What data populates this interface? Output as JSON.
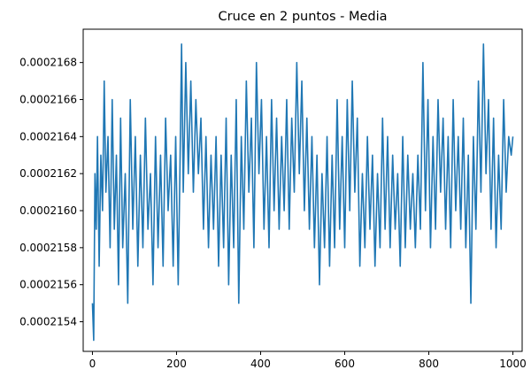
{
  "chart_data": {
    "type": "line",
    "title": "Cruce en 2 puntos - Media",
    "xlabel": "",
    "ylabel": "",
    "xlim": [
      -22,
      1022
    ],
    "ylim": [
      0.00021524,
      0.00021698
    ],
    "grid": false,
    "x_ticks": [
      {
        "value": 0,
        "label": "0"
      },
      {
        "value": 200,
        "label": "200"
      },
      {
        "value": 400,
        "label": "400"
      },
      {
        "value": 600,
        "label": "600"
      },
      {
        "value": 800,
        "label": "800"
      },
      {
        "value": 1000,
        "label": "1000"
      }
    ],
    "y_ticks": [
      {
        "value": 0.0002154,
        "label": "0.0002154"
      },
      {
        "value": 0.0002156,
        "label": "0.0002156"
      },
      {
        "value": 0.0002158,
        "label": "0.0002158"
      },
      {
        "value": 0.000216,
        "label": "0.0002160"
      },
      {
        "value": 0.0002162,
        "label": "0.0002162"
      },
      {
        "value": 0.0002164,
        "label": "0.0002164"
      },
      {
        "value": 0.0002166,
        "label": "0.0002166"
      },
      {
        "value": 0.0002168,
        "label": "0.0002168"
      }
    ],
    "series": [
      {
        "color": "#1f77b4",
        "x": [
          0,
          3,
          6,
          9,
          12,
          16,
          20,
          24,
          28,
          32,
          37,
          42,
          47,
          52,
          57,
          62,
          67,
          72,
          78,
          84,
          90,
          96,
          102,
          108,
          114,
          120,
          126,
          132,
          138,
          144,
          150,
          156,
          162,
          168,
          174,
          180,
          186,
          192,
          198,
          204,
          208,
          212,
          216,
          222,
          228,
          234,
          240,
          246,
          252,
          258,
          264,
          270,
          276,
          282,
          288,
          294,
          300,
          306,
          312,
          318,
          324,
          330,
          336,
          342,
          348,
          354,
          360,
          366,
          372,
          378,
          384,
          390,
          396,
          402,
          408,
          414,
          420,
          426,
          432,
          438,
          444,
          450,
          456,
          462,
          468,
          474,
          480,
          486,
          492,
          498,
          504,
          510,
          516,
          522,
          528,
          534,
          540,
          546,
          552,
          558,
          564,
          570,
          576,
          582,
          588,
          594,
          600,
          606,
          612,
          618,
          624,
          630,
          636,
          642,
          648,
          654,
          660,
          666,
          672,
          678,
          684,
          690,
          696,
          702,
          708,
          714,
          720,
          726,
          732,
          738,
          744,
          750,
          756,
          762,
          768,
          774,
          780,
          786,
          792,
          798,
          804,
          810,
          816,
          822,
          828,
          834,
          840,
          846,
          852,
          858,
          864,
          870,
          876,
          882,
          888,
          894,
          900,
          906,
          912,
          918,
          924,
          930,
          936,
          942,
          948,
          954,
          960,
          966,
          972,
          978,
          984,
          990,
          996,
          1000
        ],
        "y": [
          0.0002155,
          0.0002153,
          0.0002162,
          0.0002159,
          0.0002164,
          0.0002157,
          0.0002163,
          0.000216,
          0.0002167,
          0.0002161,
          0.0002164,
          0.0002158,
          0.0002166,
          0.0002159,
          0.0002163,
          0.0002156,
          0.0002165,
          0.0002158,
          0.0002162,
          0.0002155,
          0.0002166,
          0.0002159,
          0.0002164,
          0.0002157,
          0.0002163,
          0.0002158,
          0.0002165,
          0.0002159,
          0.0002162,
          0.0002156,
          0.0002164,
          0.0002158,
          0.0002163,
          0.0002157,
          0.0002165,
          0.000216,
          0.0002163,
          0.0002157,
          0.0002164,
          0.0002156,
          0.0002162,
          0.0002169,
          0.0002161,
          0.0002168,
          0.0002162,
          0.0002167,
          0.0002161,
          0.0002166,
          0.0002162,
          0.0002165,
          0.0002159,
          0.0002164,
          0.0002158,
          0.0002163,
          0.0002159,
          0.0002164,
          0.0002157,
          0.0002163,
          0.0002158,
          0.0002165,
          0.0002156,
          0.0002163,
          0.0002158,
          0.0002166,
          0.0002155,
          0.0002164,
          0.0002159,
          0.0002167,
          0.0002161,
          0.0002165,
          0.0002158,
          0.0002168,
          0.0002162,
          0.0002166,
          0.0002159,
          0.0002164,
          0.0002158,
          0.0002166,
          0.000216,
          0.0002165,
          0.0002159,
          0.0002164,
          0.000216,
          0.0002166,
          0.0002159,
          0.0002165,
          0.0002161,
          0.0002168,
          0.0002162,
          0.0002167,
          0.000216,
          0.0002165,
          0.0002159,
          0.0002164,
          0.0002158,
          0.0002163,
          0.0002156,
          0.0002162,
          0.0002158,
          0.0002164,
          0.0002157,
          0.0002163,
          0.0002158,
          0.0002166,
          0.0002159,
          0.0002164,
          0.0002158,
          0.0002166,
          0.000216,
          0.0002167,
          0.0002161,
          0.0002165,
          0.0002157,
          0.0002162,
          0.0002158,
          0.0002164,
          0.0002159,
          0.0002163,
          0.0002157,
          0.0002162,
          0.0002158,
          0.0002165,
          0.0002159,
          0.0002164,
          0.0002158,
          0.0002163,
          0.0002159,
          0.0002162,
          0.0002157,
          0.0002164,
          0.0002158,
          0.0002163,
          0.0002159,
          0.0002162,
          0.0002158,
          0.0002163,
          0.0002159,
          0.0002168,
          0.000216,
          0.0002166,
          0.0002158,
          0.0002164,
          0.0002159,
          0.0002166,
          0.0002161,
          0.0002165,
          0.0002159,
          0.0002164,
          0.0002158,
          0.0002166,
          0.000216,
          0.0002164,
          0.0002159,
          0.0002165,
          0.0002158,
          0.0002163,
          0.0002155,
          0.0002164,
          0.0002159,
          0.0002167,
          0.0002161,
          0.0002169,
          0.0002162,
          0.0002166,
          0.0002159,
          0.0002165,
          0.0002158,
          0.0002163,
          0.0002159,
          0.0002166,
          0.0002161,
          0.0002164,
          0.0002163,
          0.0002164
        ]
      }
    ]
  }
}
